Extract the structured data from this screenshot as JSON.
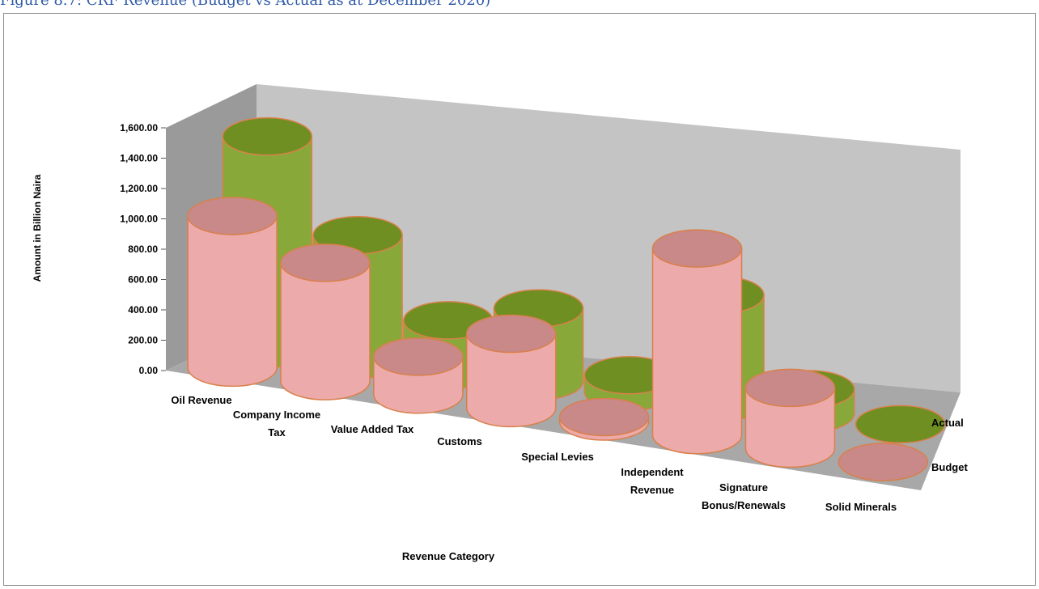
{
  "figure_caption": "Figure 8.7: CRF Revenue (Budget vs Actual as at December 2020)",
  "colors": {
    "budget_side": "#ecaaaa",
    "budget_top": "#c98989",
    "actual_side": "#88a93a",
    "actual_top": "#6f8f22",
    "outline": "#d9804a",
    "back_wall": "#c4c4c4",
    "side_wall": "#9a9a9a",
    "floor": "#a8a8a8"
  },
  "chart_data": {
    "type": "bar",
    "style": "3d-cylinder",
    "title": "",
    "xlabel": "Revenue Category",
    "ylabel": "Amount in Billion Naira",
    "ylim": [
      0,
      1600
    ],
    "yticks": [
      "0.00",
      "200.00",
      "400.00",
      "600.00",
      "800.00",
      "1,000.00",
      "1,200.00",
      "1,400.00",
      "1,600.00"
    ],
    "grid": false,
    "categories": [
      "Oil Revenue",
      "Company Income Tax",
      "Value Added Tax",
      "Customs",
      "Special Levies",
      "Independent Revenue",
      "Signature Bonus/Renewals",
      "Solid Minerals"
    ],
    "category_lines": [
      [
        "Oil Revenue"
      ],
      [
        "Company Income",
        "Tax"
      ],
      [
        "Value Added Tax"
      ],
      [
        "Customs"
      ],
      [
        "Special Levies"
      ],
      [
        "Independent",
        "Revenue"
      ],
      [
        "Signature",
        "Bonus/Renewals"
      ],
      [
        "Solid Minerals"
      ]
    ],
    "series": [
      {
        "name": "Budget",
        "values": [
          1000,
          780,
          250,
          490,
          30,
          1230,
          400,
          0
        ]
      },
      {
        "name": "Actual",
        "values": [
          1400,
          820,
          330,
          480,
          110,
          710,
          160,
          0
        ]
      }
    ]
  }
}
